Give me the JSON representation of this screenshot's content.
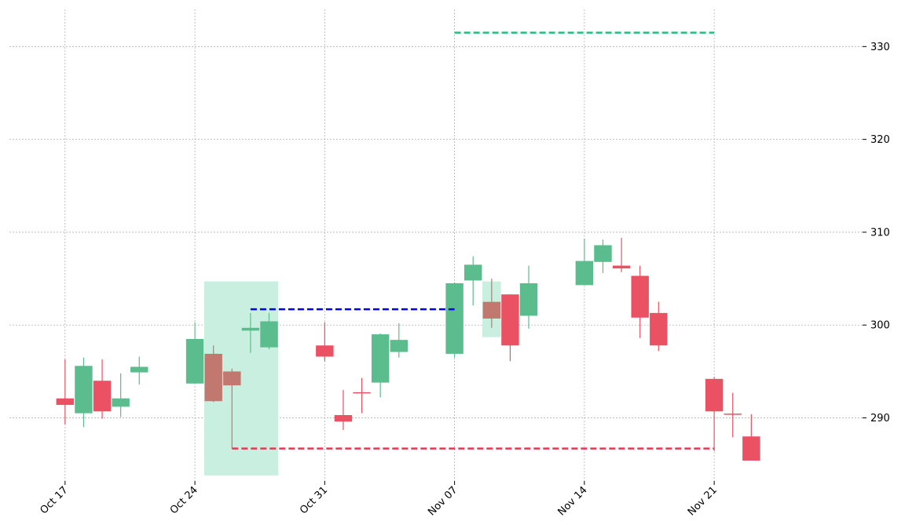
{
  "chart_data": {
    "type": "candlestick",
    "title": "",
    "xlabel": "",
    "ylabel": "",
    "ylim": [
      283.2,
      334
    ],
    "y_axis_side": "right",
    "yticks": [
      290,
      300,
      310,
      320,
      330
    ],
    "ytick_labels": [
      "290",
      "300",
      "310",
      "320",
      "330"
    ],
    "xticks": [
      {
        "date": "2022-10-17",
        "label": "Oct 17"
      },
      {
        "date": "2022-10-24",
        "label": "Oct 24"
      },
      {
        "date": "2022-10-31",
        "label": "Oct 31"
      },
      {
        "date": "2022-11-07",
        "label": "Nov 07"
      },
      {
        "date": "2022-11-14",
        "label": "Nov 14"
      },
      {
        "date": "2022-11-21",
        "label": "Nov 21"
      }
    ],
    "xlim": [
      "2022-10-14",
      "2022-11-29"
    ],
    "grid": true,
    "colors": {
      "up": "#5bbd8d",
      "down": "#ea5163",
      "pattern_candle": "#c0786f",
      "zone": "#c8efe0",
      "target_line": "#22c07e",
      "entry_line": "#0000ee",
      "stop_line": "#e53950",
      "grid": "#b0b0b0"
    },
    "candles": [
      {
        "date": "2022-10-17",
        "open": 292.1,
        "high": 296.3,
        "low": 289.3,
        "close": 291.4
      },
      {
        "date": "2022-10-18",
        "open": 290.5,
        "high": 296.5,
        "low": 289.0,
        "close": 295.6
      },
      {
        "date": "2022-10-19",
        "open": 294.0,
        "high": 296.3,
        "low": 289.9,
        "close": 290.7
      },
      {
        "date": "2022-10-20",
        "open": 291.2,
        "high": 294.8,
        "low": 290.1,
        "close": 292.1
      },
      {
        "date": "2022-10-21",
        "open": 294.9,
        "high": 296.6,
        "low": 293.6,
        "close": 295.5
      },
      {
        "date": "2022-10-24",
        "open": 293.7,
        "high": 300.3,
        "low": 293.7,
        "close": 298.5
      },
      {
        "date": "2022-10-25",
        "open": 296.9,
        "high": 297.8,
        "low": 291.7,
        "close": 291.8,
        "pattern": true
      },
      {
        "date": "2022-10-26",
        "open": 295.0,
        "high": 295.3,
        "low": 286.7,
        "close": 293.5,
        "pattern": true
      },
      {
        "date": "2022-10-27",
        "open": 299.4,
        "high": 301.3,
        "low": 297.0,
        "close": 299.7
      },
      {
        "date": "2022-10-28",
        "open": 297.6,
        "high": 301.3,
        "low": 297.4,
        "close": 300.4
      },
      {
        "date": "2022-10-31",
        "open": 297.8,
        "high": 300.3,
        "low": 296.1,
        "close": 296.6
      },
      {
        "date": "2022-11-01",
        "open": 290.3,
        "high": 293.0,
        "low": 288.7,
        "close": 289.6
      },
      {
        "date": "2022-11-02",
        "open": 292.7,
        "high": 294.3,
        "low": 290.5,
        "close": 292.6
      },
      {
        "date": "2022-11-03",
        "open": 293.8,
        "high": 299.1,
        "low": 292.2,
        "close": 299.0
      },
      {
        "date": "2022-11-04",
        "open": 297.1,
        "high": 300.2,
        "low": 296.5,
        "close": 298.4
      },
      {
        "date": "2022-11-07",
        "open": 296.9,
        "high": 304.6,
        "low": 296.5,
        "close": 304.5
      },
      {
        "date": "2022-11-08",
        "open": 304.8,
        "high": 307.4,
        "low": 302.1,
        "close": 306.5
      },
      {
        "date": "2022-11-09",
        "open": 302.5,
        "high": 305.0,
        "low": 299.7,
        "close": 300.7,
        "pattern": true
      },
      {
        "date": "2022-11-10",
        "open": 303.3,
        "high": 303.3,
        "low": 296.1,
        "close": 297.8
      },
      {
        "date": "2022-11-11",
        "open": 301.0,
        "high": 306.4,
        "low": 299.6,
        "close": 304.5
      },
      {
        "date": "2022-11-14",
        "open": 304.3,
        "high": 309.3,
        "low": 304.3,
        "close": 306.9
      },
      {
        "date": "2022-11-15",
        "open": 306.8,
        "high": 309.2,
        "low": 305.6,
        "close": 308.6
      },
      {
        "date": "2022-11-16",
        "open": 306.4,
        "high": 309.4,
        "low": 305.7,
        "close": 306.1
      },
      {
        "date": "2022-11-17",
        "open": 305.3,
        "high": 306.4,
        "low": 298.6,
        "close": 300.8
      },
      {
        "date": "2022-11-18",
        "open": 301.3,
        "high": 302.5,
        "low": 297.2,
        "close": 297.8
      },
      {
        "date": "2022-11-21",
        "open": 294.2,
        "high": 294.4,
        "low": 286.4,
        "close": 290.7
      },
      {
        "date": "2022-11-22",
        "open": 290.4,
        "high": 292.7,
        "low": 287.9,
        "close": 290.3
      },
      {
        "date": "2022-11-23",
        "open": 288.0,
        "high": 290.4,
        "low": 285.4,
        "close": 285.4
      }
    ],
    "zones": [
      {
        "from": "2022-10-24T12:00",
        "to": "2022-10-28T12:00",
        "low": 283.8,
        "high": 304.7
      },
      {
        "from": "2022-11-08T12:00",
        "to": "2022-11-09T12:00",
        "low": 298.7,
        "high": 304.7
      }
    ],
    "hlines": [
      {
        "role": "target",
        "y": 331.5,
        "from": "2022-11-07",
        "to": "2022-11-21"
      },
      {
        "role": "entry",
        "y": 301.7,
        "from": "2022-10-27",
        "to": "2022-11-07"
      },
      {
        "role": "stop",
        "y": 286.7,
        "from": "2022-10-26",
        "to": "2022-11-21"
      }
    ]
  }
}
